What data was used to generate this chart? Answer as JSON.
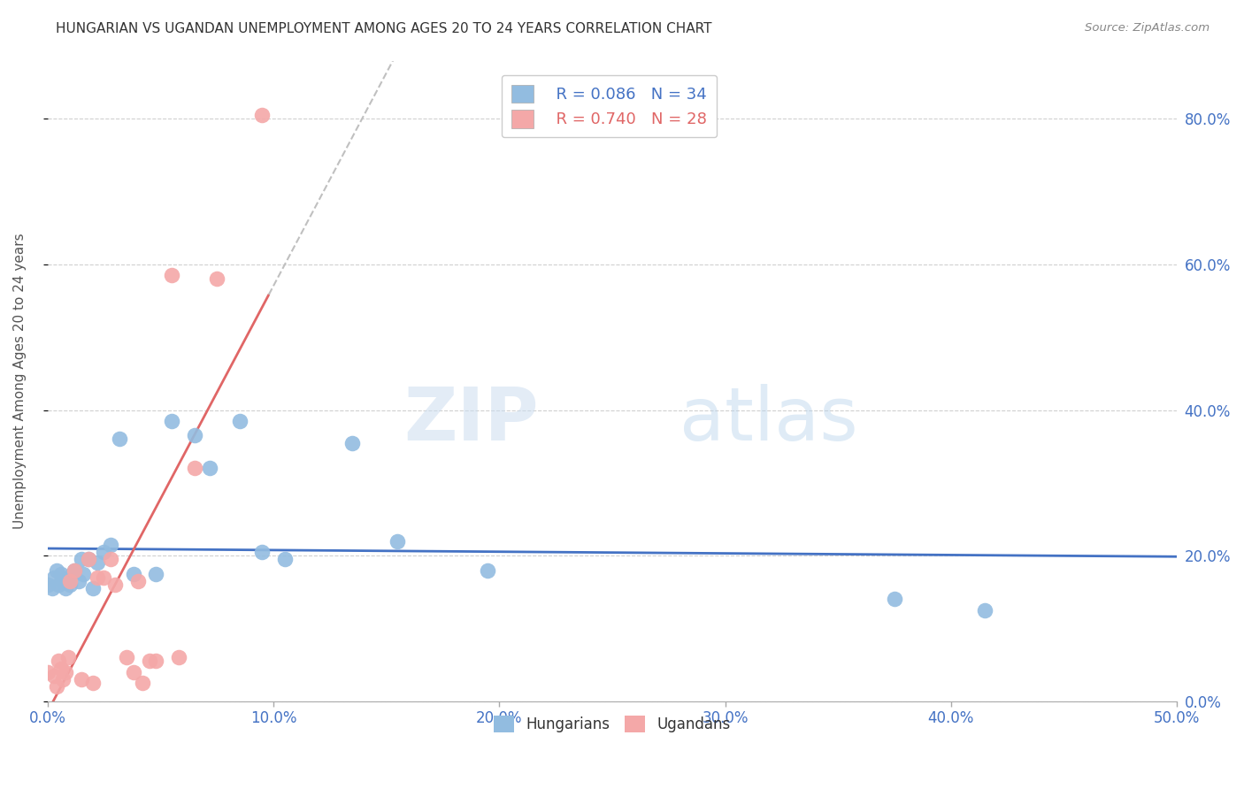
{
  "title": "HUNGARIAN VS UGANDAN UNEMPLOYMENT AMONG AGES 20 TO 24 YEARS CORRELATION CHART",
  "source": "Source: ZipAtlas.com",
  "ylabel": "Unemployment Among Ages 20 to 24 years",
  "xlim": [
    0.0,
    0.5
  ],
  "ylim": [
    0.0,
    0.88
  ],
  "yticks": [
    0.0,
    0.2,
    0.4,
    0.6,
    0.8
  ],
  "xticks": [
    0.0,
    0.1,
    0.2,
    0.3,
    0.4,
    0.5
  ],
  "hungarian_color": "#92bce0",
  "ugandan_color": "#f4a8a8",
  "trendline_hungarian_color": "#4472c4",
  "trendline_ugandan_color": "#e06666",
  "trendline_ugandan_dashed_color": "#c0c0c0",
  "watermark_zip": "ZIP",
  "watermark_atlas": "atlas",
  "legend_R_hungarian": "R = 0.086",
  "legend_N_hungarian": "N = 34",
  "legend_R_ugandan": "R = 0.740",
  "legend_N_ugandan": "N = 28",
  "hungarian_x": [
    0.0,
    0.002,
    0.003,
    0.004,
    0.005,
    0.006,
    0.007,
    0.008,
    0.009,
    0.01,
    0.011,
    0.012,
    0.014,
    0.015,
    0.016,
    0.018,
    0.02,
    0.022,
    0.025,
    0.028,
    0.032,
    0.038,
    0.048,
    0.055,
    0.065,
    0.072,
    0.085,
    0.095,
    0.105,
    0.135,
    0.155,
    0.195,
    0.375,
    0.415
  ],
  "hungarian_y": [
    0.16,
    0.155,
    0.17,
    0.18,
    0.16,
    0.175,
    0.165,
    0.155,
    0.17,
    0.16,
    0.175,
    0.18,
    0.165,
    0.195,
    0.175,
    0.195,
    0.155,
    0.19,
    0.205,
    0.215,
    0.36,
    0.175,
    0.175,
    0.385,
    0.365,
    0.32,
    0.385,
    0.205,
    0.195,
    0.355,
    0.22,
    0.18,
    0.14,
    0.125
  ],
  "ugandan_x": [
    0.0,
    0.003,
    0.004,
    0.005,
    0.006,
    0.007,
    0.008,
    0.009,
    0.01,
    0.012,
    0.015,
    0.018,
    0.02,
    0.022,
    0.025,
    0.028,
    0.03,
    0.035,
    0.038,
    0.04,
    0.042,
    0.045,
    0.048,
    0.055,
    0.058,
    0.065,
    0.075,
    0.095
  ],
  "ugandan_y": [
    0.04,
    0.035,
    0.02,
    0.055,
    0.045,
    0.03,
    0.04,
    0.06,
    0.165,
    0.18,
    0.03,
    0.195,
    0.025,
    0.17,
    0.17,
    0.195,
    0.16,
    0.06,
    0.04,
    0.165,
    0.025,
    0.055,
    0.055,
    0.585,
    0.06,
    0.32,
    0.58,
    0.805
  ]
}
